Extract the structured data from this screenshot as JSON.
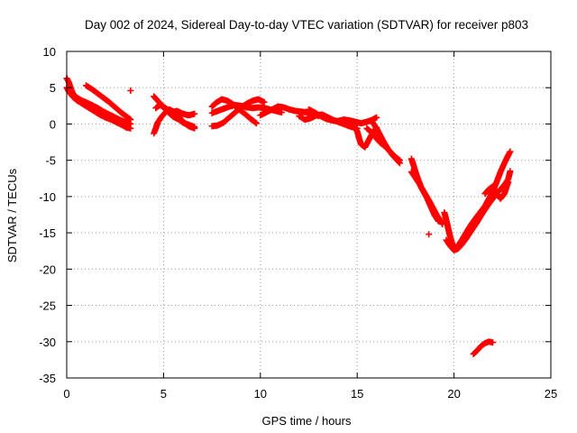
{
  "chart_data": {
    "type": "scatter",
    "title": "Day 002 of 2024, Sidereal Day-to-day VTEC variation (SDTVAR) for receiver p803",
    "xlabel": "GPS time / hours",
    "ylabel": "SDTVAR / TECUs",
    "xlim": [
      0,
      25
    ],
    "ylim": [
      -35,
      10
    ],
    "xticks": [
      0,
      5,
      10,
      15,
      20,
      25
    ],
    "yticks": [
      10,
      5,
      0,
      -5,
      -10,
      -15,
      -20,
      -25,
      -30,
      -35
    ],
    "grid": true,
    "legend": "none",
    "marker": "+",
    "color": "#ff0000",
    "series": [
      {
        "name": "SDTVAR",
        "segments": [
          [
            [
              0.0,
              6.3
            ],
            [
              0.1,
              5.8
            ],
            [
              0.2,
              5.0
            ],
            [
              0.3,
              4.3
            ],
            [
              0.4,
              3.9
            ],
            [
              0.6,
              3.5
            ],
            [
              0.8,
              3.2
            ],
            [
              1.0,
              3.0
            ],
            [
              1.3,
              2.6
            ],
            [
              1.6,
              2.2
            ],
            [
              1.9,
              1.7
            ],
            [
              2.2,
              1.3
            ],
            [
              2.5,
              0.9
            ],
            [
              2.8,
              0.5
            ],
            [
              3.1,
              0.2
            ],
            [
              3.3,
              0.0
            ]
          ],
          [
            [
              0.0,
              5.0
            ],
            [
              0.1,
              4.5
            ],
            [
              0.3,
              3.8
            ],
            [
              0.5,
              3.3
            ],
            [
              0.8,
              2.8
            ],
            [
              1.1,
              2.3
            ],
            [
              1.4,
              1.8
            ],
            [
              1.7,
              1.3
            ],
            [
              2.0,
              0.9
            ],
            [
              2.3,
              0.6
            ],
            [
              2.6,
              0.2
            ],
            [
              2.9,
              -0.2
            ],
            [
              3.1,
              -0.5
            ],
            [
              3.3,
              -0.6
            ]
          ],
          [
            [
              1.0,
              5.3
            ],
            [
              1.3,
              4.8
            ],
            [
              1.6,
              4.2
            ],
            [
              1.9,
              3.6
            ],
            [
              2.2,
              3.0
            ],
            [
              2.5,
              2.3
            ],
            [
              2.8,
              1.6
            ],
            [
              3.1,
              1.0
            ],
            [
              3.3,
              0.6
            ]
          ],
          [
            [
              3.3,
              4.6
            ]
          ],
          [
            [
              4.5,
              3.8
            ],
            [
              4.7,
              3.2
            ],
            [
              4.9,
              2.6
            ],
            [
              5.1,
              2.0
            ],
            [
              5.3,
              1.5
            ],
            [
              5.5,
              1.0
            ],
            [
              5.8,
              0.6
            ],
            [
              6.0,
              0.2
            ],
            [
              6.3,
              -0.1
            ],
            [
              6.6,
              -0.4
            ]
          ],
          [
            [
              4.5,
              -1.3
            ],
            [
              4.6,
              -0.6
            ],
            [
              4.7,
              0.2
            ],
            [
              4.9,
              1.0
            ],
            [
              5.1,
              1.6
            ],
            [
              5.3,
              2.0
            ],
            [
              5.6,
              1.6
            ],
            [
              5.8,
              1.0
            ],
            [
              6.0,
              0.3
            ],
            [
              6.3,
              -0.3
            ],
            [
              6.6,
              -0.6
            ]
          ],
          [
            [
              4.6,
              2.2
            ],
            [
              4.8,
              2.6
            ],
            [
              5.0,
              2.4
            ],
            [
              5.2,
              2.0
            ],
            [
              5.4,
              1.6
            ],
            [
              5.7,
              1.8
            ],
            [
              6.0,
              1.4
            ],
            [
              6.3,
              1.2
            ],
            [
              6.6,
              1.4
            ]
          ],
          [
            [
              7.5,
              2.4
            ],
            [
              7.7,
              2.9
            ],
            [
              8.0,
              3.4
            ],
            [
              8.3,
              3.2
            ],
            [
              8.6,
              2.7
            ],
            [
              8.9,
              2.0
            ],
            [
              9.2,
              1.4
            ],
            [
              9.5,
              0.7
            ],
            [
              9.8,
              0.1
            ]
          ],
          [
            [
              7.5,
              -0.3
            ],
            [
              7.8,
              -0.2
            ],
            [
              8.1,
              0.2
            ],
            [
              8.4,
              0.9
            ],
            [
              8.7,
              1.6
            ],
            [
              9.0,
              2.3
            ],
            [
              9.3,
              2.8
            ],
            [
              9.6,
              3.2
            ],
            [
              9.9,
              3.4
            ],
            [
              10.2,
              3.0
            ]
          ],
          [
            [
              7.5,
              1.5
            ],
            [
              7.8,
              1.8
            ],
            [
              8.1,
              2.1
            ],
            [
              8.4,
              2.4
            ],
            [
              8.7,
              2.6
            ],
            [
              9.0,
              2.5
            ],
            [
              9.3,
              2.3
            ],
            [
              9.6,
              2.2
            ],
            [
              9.9,
              2.3
            ],
            [
              10.2,
              2.2
            ],
            [
              10.5,
              2.0
            ],
            [
              10.8,
              1.8
            ],
            [
              11.1,
              1.6
            ]
          ],
          [
            [
              10.0,
              1.2
            ],
            [
              10.3,
              1.6
            ],
            [
              10.6,
              2.0
            ],
            [
              10.9,
              2.4
            ],
            [
              11.2,
              2.3
            ],
            [
              11.5,
              2.0
            ],
            [
              11.8,
              1.8
            ],
            [
              12.1,
              1.7
            ],
            [
              12.4,
              1.6
            ],
            [
              12.7,
              1.4
            ],
            [
              13.0,
              1.1
            ]
          ],
          [
            [
              12.0,
              1.1
            ],
            [
              12.3,
              0.6
            ],
            [
              12.6,
              0.8
            ],
            [
              12.9,
              1.2
            ],
            [
              13.2,
              1.3
            ],
            [
              13.5,
              0.9
            ],
            [
              13.8,
              0.5
            ],
            [
              14.1,
              0.2
            ],
            [
              14.4,
              -0.1
            ],
            [
              14.7,
              -0.4
            ],
            [
              15.0,
              -0.6
            ]
          ],
          [
            [
              12.5,
              2.0
            ],
            [
              12.8,
              1.6
            ],
            [
              13.1,
              1.1
            ],
            [
              13.4,
              0.7
            ],
            [
              13.7,
              0.5
            ],
            [
              14.0,
              0.4
            ],
            [
              14.3,
              0.6
            ],
            [
              14.6,
              0.5
            ],
            [
              14.9,
              0.3
            ],
            [
              15.2,
              0.1
            ],
            [
              15.5,
              0.3
            ],
            [
              15.8,
              0.6
            ],
            [
              16.0,
              0.9
            ]
          ],
          [
            [
              14.8,
              -0.1
            ],
            [
              15.0,
              -1.0
            ],
            [
              15.1,
              -2.0
            ],
            [
              15.2,
              -2.8
            ],
            [
              15.4,
              -3.2
            ],
            [
              15.6,
              -2.2
            ],
            [
              15.8,
              -1.2
            ],
            [
              16.0,
              -0.5
            ]
          ],
          [
            [
              15.5,
              -0.6
            ],
            [
              15.8,
              -1.3
            ],
            [
              16.0,
              -2.0
            ],
            [
              16.2,
              -2.6
            ],
            [
              16.4,
              -3.0
            ],
            [
              16.6,
              -3.5
            ],
            [
              16.8,
              -4.1
            ],
            [
              17.0,
              -4.6
            ],
            [
              17.2,
              -5.0
            ]
          ],
          [
            [
              15.8,
              0.2
            ],
            [
              16.0,
              -0.6
            ],
            [
              16.2,
              -1.6
            ],
            [
              16.4,
              -2.6
            ],
            [
              16.6,
              -3.5
            ],
            [
              16.8,
              -4.2
            ],
            [
              17.0,
              -4.8
            ],
            [
              17.2,
              -5.4
            ]
          ],
          [
            [
              17.8,
              -4.8
            ],
            [
              17.9,
              -5.6
            ],
            [
              18.0,
              -6.5
            ],
            [
              18.1,
              -7.3
            ],
            [
              18.2,
              -8.0
            ],
            [
              18.3,
              -8.7
            ],
            [
              18.5,
              -9.6
            ],
            [
              18.7,
              -10.5
            ],
            [
              18.9,
              -11.5
            ],
            [
              19.1,
              -12.5
            ],
            [
              19.3,
              -13.3
            ],
            [
              19.4,
              -13.8
            ]
          ],
          [
            [
              17.8,
              -6.6
            ],
            [
              18.0,
              -7.4
            ],
            [
              18.2,
              -8.2
            ],
            [
              18.4,
              -9.2
            ],
            [
              18.6,
              -10.2
            ],
            [
              18.8,
              -11.4
            ],
            [
              19.0,
              -12.6
            ],
            [
              19.2,
              -13.4
            ]
          ],
          [
            [
              18.7,
              -15.2
            ]
          ],
          [
            [
              19.5,
              -12.2
            ],
            [
              19.6,
              -13.2
            ],
            [
              19.7,
              -14.4
            ],
            [
              19.8,
              -15.5
            ],
            [
              19.9,
              -16.4
            ],
            [
              20.0,
              -17.2
            ]
          ],
          [
            [
              19.6,
              -16.0
            ],
            [
              19.8,
              -16.8
            ],
            [
              20.0,
              -17.4
            ],
            [
              20.2,
              -17.2
            ],
            [
              20.4,
              -16.6
            ],
            [
              20.6,
              -15.9
            ],
            [
              20.8,
              -15.1
            ],
            [
              21.0,
              -14.3
            ],
            [
              21.2,
              -13.5
            ],
            [
              21.4,
              -12.6
            ],
            [
              21.6,
              -11.8
            ],
            [
              21.8,
              -11.0
            ],
            [
              22.0,
              -10.3
            ],
            [
              22.2,
              -9.6
            ],
            [
              22.4,
              -9.0
            ],
            [
              22.6,
              -8.4
            ],
            [
              22.8,
              -7.6
            ],
            [
              22.9,
              -6.5
            ]
          ],
          [
            [
              20.2,
              -16.8
            ],
            [
              20.4,
              -16.0
            ],
            [
              20.6,
              -15.1
            ],
            [
              20.8,
              -14.2
            ],
            [
              21.0,
              -13.4
            ],
            [
              21.2,
              -12.7
            ],
            [
              21.4,
              -12.0
            ],
            [
              21.6,
              -11.3
            ],
            [
              21.8,
              -10.3
            ],
            [
              22.0,
              -9.3
            ],
            [
              22.2,
              -8.0
            ],
            [
              22.4,
              -6.6
            ],
            [
              22.6,
              -5.4
            ],
            [
              22.8,
              -4.3
            ],
            [
              22.9,
              -3.8
            ]
          ],
          [
            [
              21.6,
              -9.6
            ],
            [
              21.8,
              -9.0
            ],
            [
              22.0,
              -8.6
            ],
            [
              22.2,
              -9.6
            ],
            [
              22.4,
              -10.3
            ],
            [
              22.6,
              -9.6
            ],
            [
              22.8,
              -8.0
            ]
          ],
          [
            [
              21.0,
              -31.7
            ],
            [
              21.2,
              -31.2
            ],
            [
              21.4,
              -30.6
            ],
            [
              21.6,
              -30.2
            ],
            [
              21.8,
              -30.0
            ],
            [
              22.0,
              -30.1
            ]
          ]
        ]
      }
    ]
  }
}
